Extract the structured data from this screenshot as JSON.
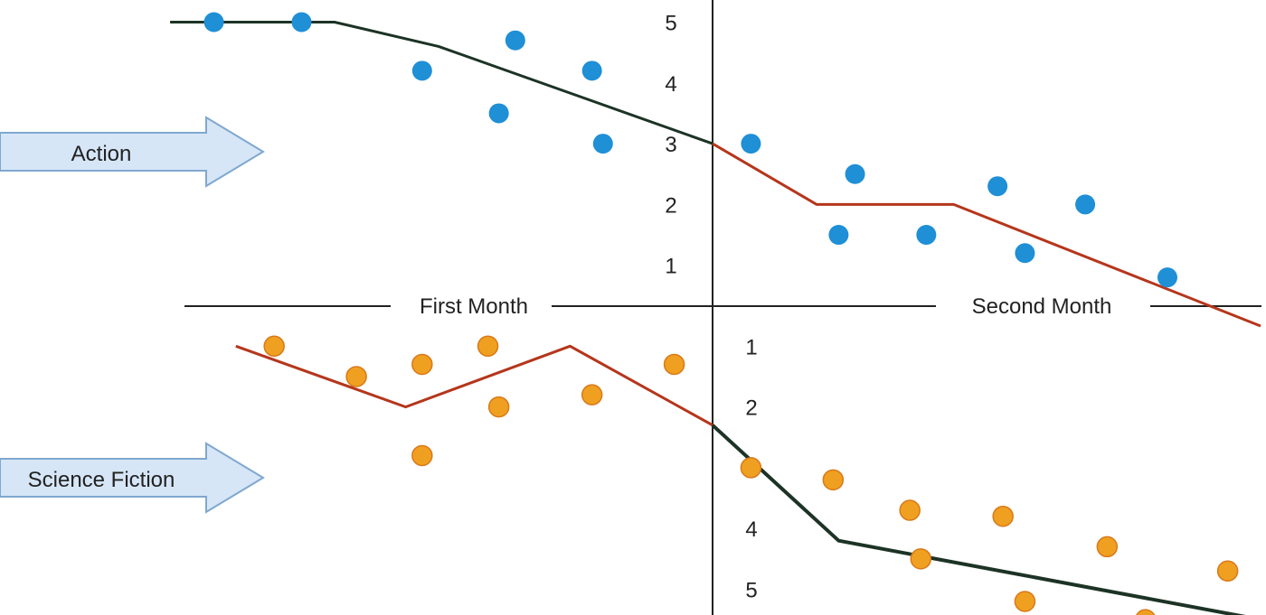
{
  "chart_data": {
    "type": "scatter",
    "title": "",
    "x_sections": [
      "First Month",
      "Second Month"
    ],
    "y_axis_top": {
      "ticks": [
        5,
        4,
        3,
        2,
        1
      ]
    },
    "y_axis_bottom": {
      "ticks": [
        1,
        2,
        3,
        4,
        5
      ]
    },
    "grid": false,
    "series": [
      {
        "name": "Action",
        "color": "#1f8fd6",
        "arrow_fill": "#d6e6f7",
        "points": [
          [
            -9.1,
            5.0
          ],
          [
            -7.5,
            5.0
          ],
          [
            -5.3,
            4.2
          ],
          [
            -3.6,
            4.7
          ],
          [
            -3.9,
            3.5
          ],
          [
            -2.2,
            4.2
          ],
          [
            -2.0,
            3.0
          ],
          [
            0.7,
            3.0
          ],
          [
            2.3,
            1.5
          ],
          [
            2.6,
            2.5
          ],
          [
            3.9,
            1.5
          ],
          [
            5.2,
            2.3
          ],
          [
            5.7,
            1.2
          ],
          [
            6.8,
            2.0
          ],
          [
            8.3,
            0.8
          ]
        ],
        "trend_first_month": [
          [
            -9.9,
            5.0
          ],
          [
            -6.9,
            5.0
          ],
          [
            -5.0,
            4.6
          ],
          [
            0,
            3.0
          ]
        ],
        "trend_second_month": [
          [
            0,
            3.0
          ],
          [
            1.9,
            2.0
          ],
          [
            4.4,
            2.0
          ],
          [
            10,
            0.0
          ]
        ]
      },
      {
        "name": "Science Fiction",
        "color": "#f0a020",
        "arrow_fill": "#d6e6f7",
        "points": [
          [
            -8.0,
            1.0
          ],
          [
            -6.5,
            1.5
          ],
          [
            -5.3,
            1.3
          ],
          [
            -4.1,
            1.0
          ],
          [
            -5.3,
            2.8
          ],
          [
            -3.9,
            2.0
          ],
          [
            -2.2,
            1.8
          ],
          [
            -0.7,
            1.3
          ],
          [
            0.7,
            3.0
          ],
          [
            2.2,
            3.2
          ],
          [
            3.6,
            3.7
          ],
          [
            3.8,
            4.5
          ],
          [
            5.3,
            3.8
          ],
          [
            5.7,
            5.2
          ],
          [
            7.2,
            4.3
          ],
          [
            7.9,
            5.5
          ],
          [
            9.4,
            4.7
          ]
        ],
        "trend_first_month": [
          [
            -8.7,
            1.0
          ],
          [
            -5.6,
            2.0
          ],
          [
            -2.6,
            1.0
          ],
          [
            0,
            2.3
          ]
        ],
        "trend_second_month": [
          [
            0,
            2.3
          ],
          [
            2.3,
            4.2
          ],
          [
            10,
            5.5
          ]
        ]
      }
    ],
    "line_colors": {
      "decline": "#1c3325",
      "rise": "#b5361c"
    }
  },
  "labels": {
    "first_month": "First Month",
    "second_month": "Second Month",
    "action": "Action",
    "science_fiction": "Science Fiction"
  }
}
